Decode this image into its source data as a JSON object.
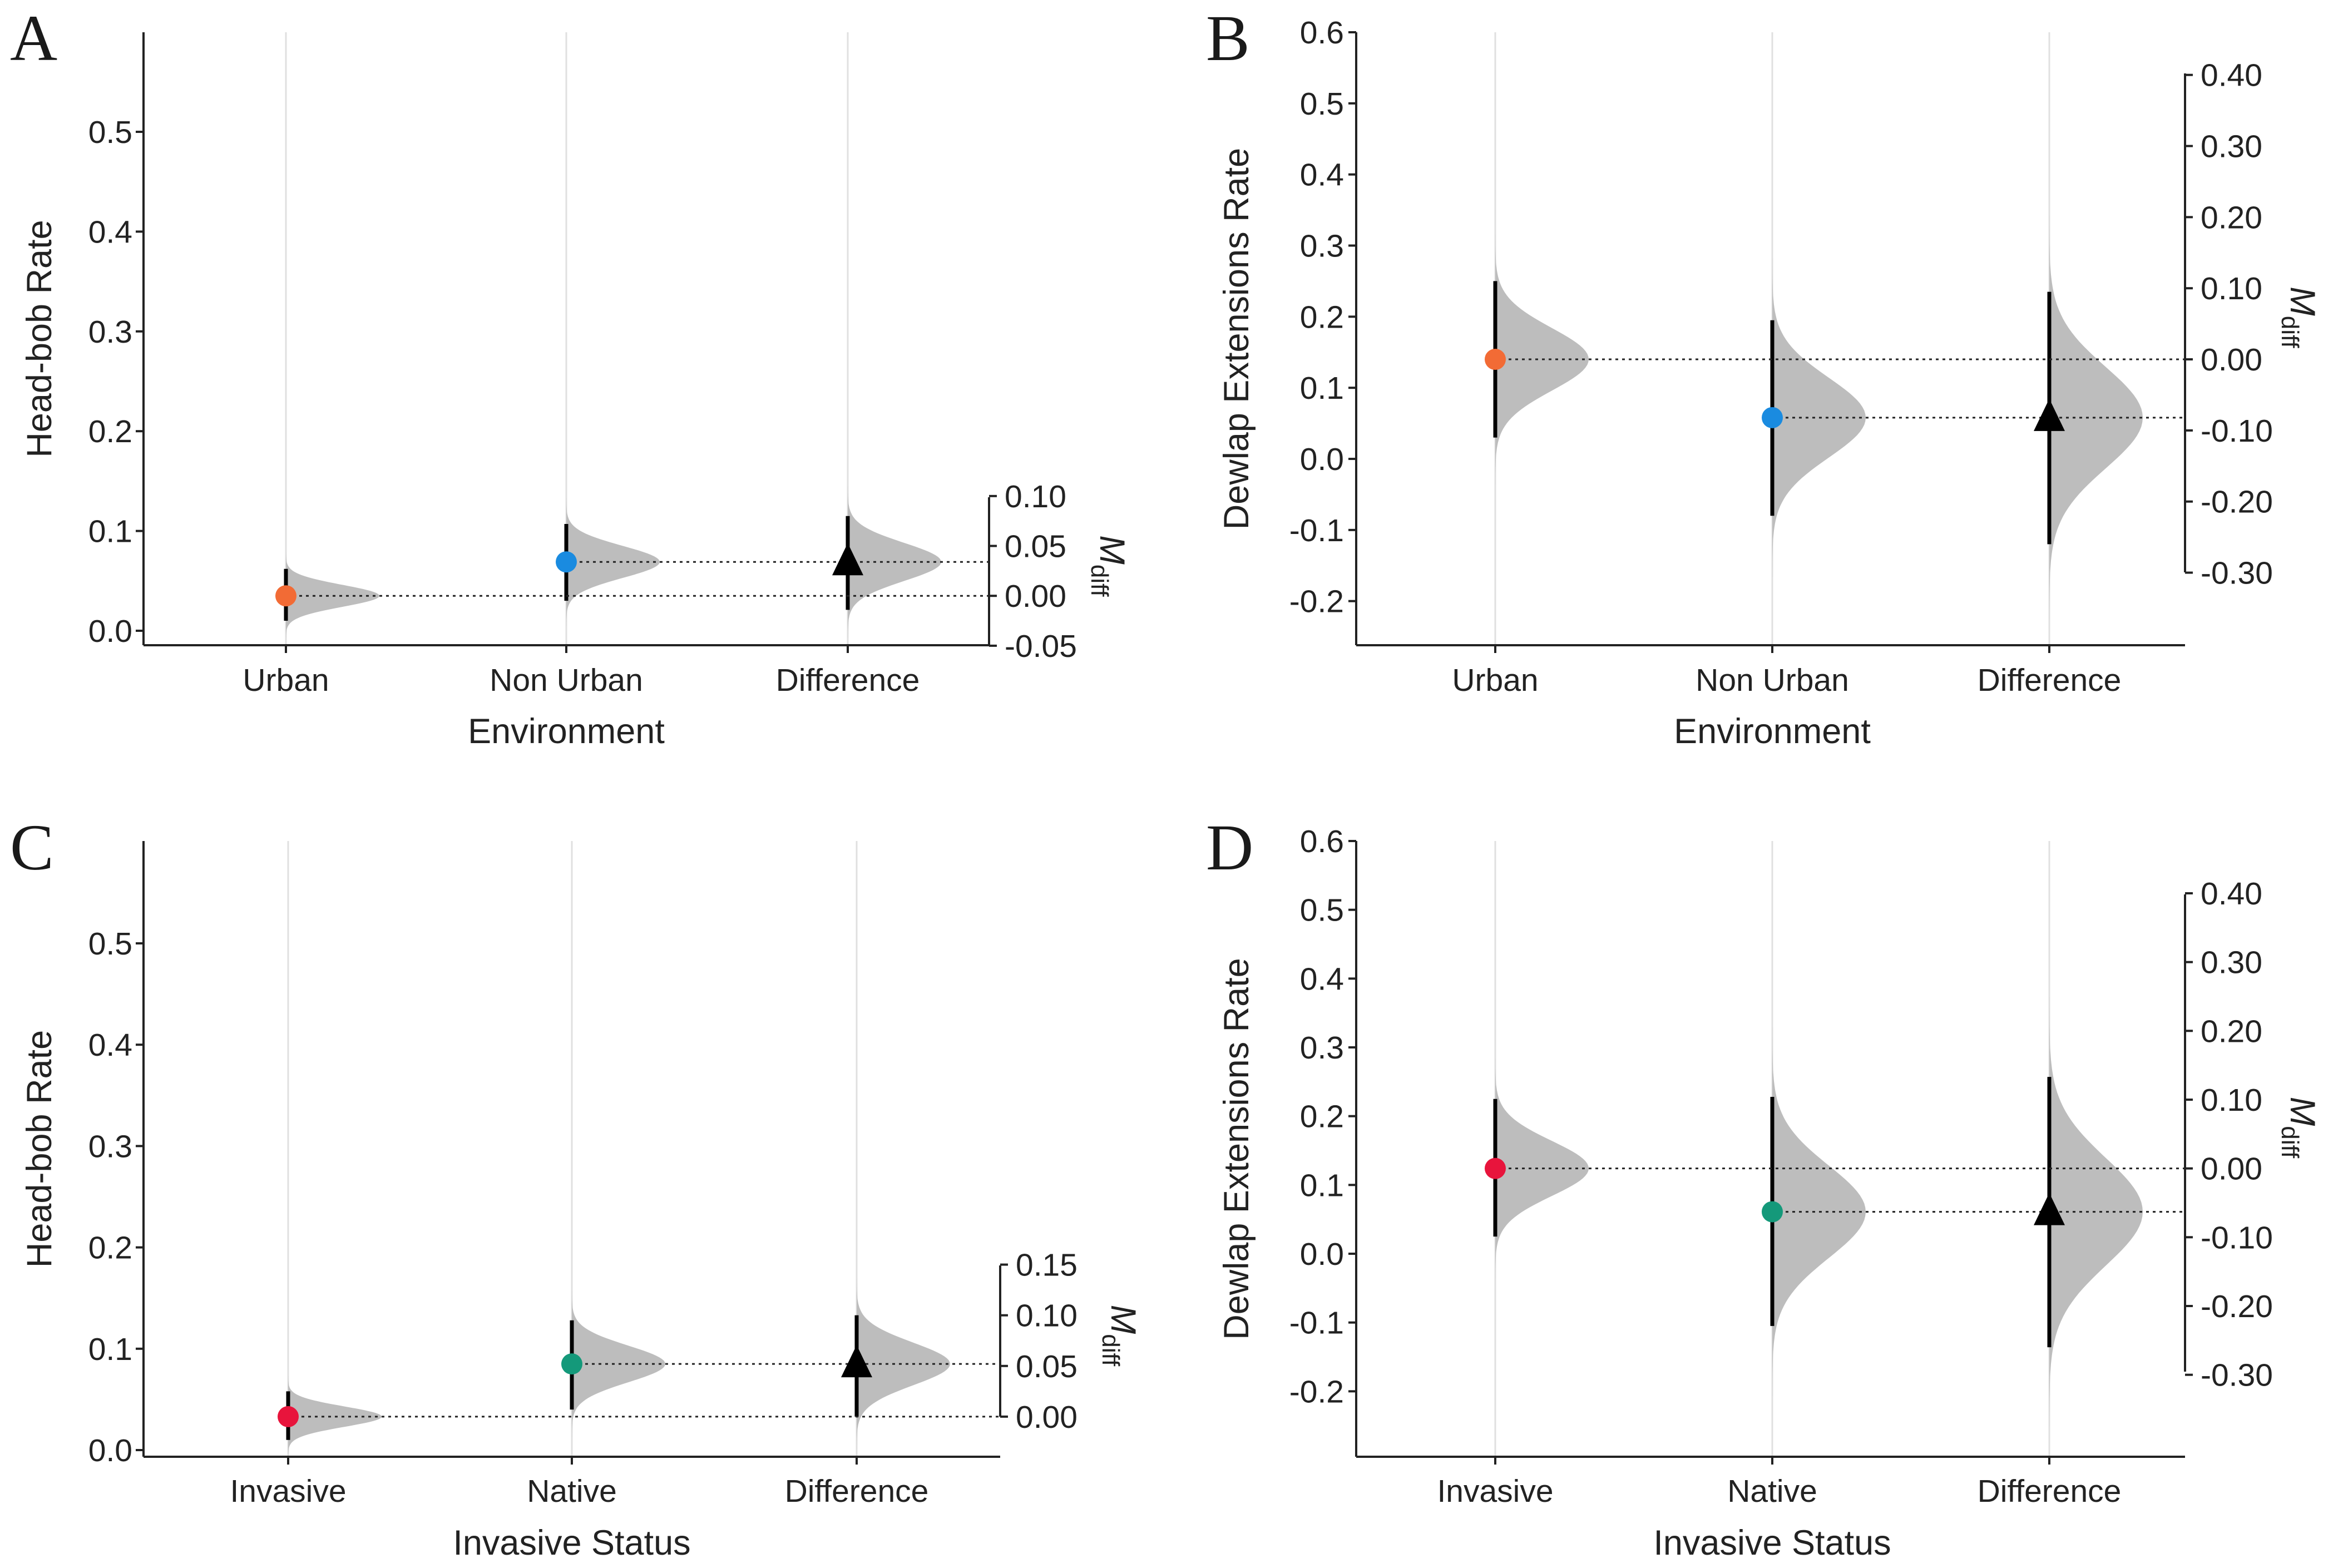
{
  "figure": {
    "colors": {
      "axis": "#222222",
      "distribution": "#bdbdbd",
      "guide": "#e0e0e0",
      "urban": "#f26b35",
      "non_urban": "#1a8be0",
      "invasive": "#e8143c",
      "native": "#14997a",
      "difference": "#000000"
    }
  },
  "chart_data": [
    {
      "panel": "A",
      "type": "scatter",
      "subtype": "estimation plot (Gardner-Altman)",
      "xlabel": "Environment",
      "ylabel": "Head-bob Rate",
      "categories": [
        "Urban",
        "Non Urban",
        "Difference"
      ],
      "ylim": [
        -0.01,
        0.6
      ],
      "yticks": [
        0.0,
        0.1,
        0.2,
        0.3,
        0.4,
        0.5
      ],
      "ytick_labels": [
        "0.0",
        "0.1",
        "0.2",
        "0.3",
        "0.4",
        "0.5"
      ],
      "series": [
        {
          "name": "Urban",
          "mean": 0.035,
          "ci": [
            0.01,
            0.062
          ],
          "dist_sd": 0.011,
          "color_key": "urban",
          "marker": "circle"
        },
        {
          "name": "Non Urban",
          "mean": 0.069,
          "ci": [
            0.03,
            0.107
          ],
          "dist_sd": 0.016,
          "color_key": "non_urban",
          "marker": "circle"
        },
        {
          "name": "Difference",
          "mean": 0.034,
          "ci": [
            -0.014,
            0.08
          ],
          "dist_sd": 0.019,
          "color_key": "difference",
          "marker": "triangle"
        }
      ],
      "secondary_axis": {
        "label": "M",
        "label_sub": "diff",
        "ticks": [
          0.1,
          0.05,
          0.0,
          -0.05
        ],
        "tick_labels": [
          "0.10",
          "0.05",
          "0.00",
          "-0.05"
        ]
      }
    },
    {
      "panel": "B",
      "type": "scatter",
      "subtype": "estimation plot (Gardner-Altman)",
      "xlabel": "Environment",
      "ylabel": "Dewlap Extensions Rate",
      "categories": [
        "Urban",
        "Non Urban",
        "Difference"
      ],
      "ylim": [
        -0.26,
        0.6
      ],
      "yticks": [
        0.6,
        0.5,
        0.4,
        0.3,
        0.2,
        0.1,
        0.0,
        -0.1,
        -0.2
      ],
      "ytick_labels": [
        "0.6",
        "0.5",
        "0.4",
        "0.3",
        "0.2",
        "0.1",
        "0.0",
        "-0.1",
        "-0.2"
      ],
      "series": [
        {
          "name": "Urban",
          "mean": 0.14,
          "ci": [
            0.03,
            0.25
          ],
          "dist_sd": 0.044,
          "color_key": "urban",
          "marker": "circle"
        },
        {
          "name": "Non Urban",
          "mean": 0.058,
          "ci": [
            -0.08,
            0.195
          ],
          "dist_sd": 0.056,
          "color_key": "non_urban",
          "marker": "circle"
        },
        {
          "name": "Difference",
          "mean": -0.082,
          "ci": [
            -0.26,
            0.095
          ],
          "dist_sd": 0.071,
          "color_key": "difference",
          "marker": "triangle"
        }
      ],
      "secondary_axis": {
        "label": "M",
        "label_sub": "diff",
        "ticks": [
          0.4,
          0.3,
          0.2,
          0.1,
          0.0,
          -0.1,
          -0.2,
          -0.3
        ],
        "tick_labels": [
          "0.40",
          "0.30",
          "0.20",
          "0.10",
          "0.00",
          "-0.10",
          "-0.20",
          "-0.30"
        ]
      }
    },
    {
      "panel": "C",
      "type": "scatter",
      "subtype": "estimation plot (Gardner-Altman)",
      "xlabel": "Invasive Status",
      "ylabel": "Head-bob Rate",
      "categories": [
        "Invasive",
        "Native",
        "Difference"
      ],
      "ylim": [
        -0.01,
        0.6
      ],
      "yticks": [
        0.0,
        0.1,
        0.2,
        0.3,
        0.4,
        0.5
      ],
      "ytick_labels": [
        "0.0",
        "0.1",
        "0.2",
        "0.3",
        "0.4",
        "0.5"
      ],
      "series": [
        {
          "name": "Invasive",
          "mean": 0.033,
          "ci": [
            0.01,
            0.058
          ],
          "dist_sd": 0.01,
          "color_key": "invasive",
          "marker": "circle"
        },
        {
          "name": "Native",
          "mean": 0.085,
          "ci": [
            0.04,
            0.128
          ],
          "dist_sd": 0.018,
          "color_key": "native",
          "marker": "circle"
        },
        {
          "name": "Difference",
          "mean": 0.052,
          "ci": [
            0.0,
            0.1
          ],
          "dist_sd": 0.021,
          "color_key": "difference",
          "marker": "triangle"
        }
      ],
      "secondary_axis": {
        "label": "M",
        "label_sub": "diff",
        "ticks": [
          0.15,
          0.1,
          0.05,
          0.0
        ],
        "tick_labels": [
          "0.15",
          "0.10",
          "0.05",
          "0.00"
        ]
      }
    },
    {
      "panel": "D",
      "type": "scatter",
      "subtype": "estimation plot (Gardner-Altman)",
      "xlabel": "Invasive Status",
      "ylabel": "Dewlap Extensions Rate",
      "categories": [
        "Invasive",
        "Native",
        "Difference"
      ],
      "ylim": [
        -0.26,
        0.6
      ],
      "yticks": [
        0.6,
        0.5,
        0.4,
        0.3,
        0.2,
        0.1,
        0.0,
        -0.1,
        -0.2
      ],
      "ytick_labels": [
        "0.6",
        "0.5",
        "0.4",
        "0.3",
        "0.2",
        "0.1",
        "0.0",
        "-0.1",
        "-0.2"
      ],
      "series": [
        {
          "name": "Invasive",
          "mean": 0.124,
          "ci": [
            0.025,
            0.225
          ],
          "dist_sd": 0.04,
          "color_key": "invasive",
          "marker": "circle"
        },
        {
          "name": "Native",
          "mean": 0.061,
          "ci": [
            -0.105,
            0.228
          ],
          "dist_sd": 0.067,
          "color_key": "native",
          "marker": "circle"
        },
        {
          "name": "Difference",
          "mean": -0.063,
          "ci": [
            -0.26,
            0.133
          ],
          "dist_sd": 0.078,
          "color_key": "difference",
          "marker": "triangle"
        }
      ],
      "secondary_axis": {
        "label": "M",
        "label_sub": "diff",
        "ticks": [
          0.4,
          0.3,
          0.2,
          0.1,
          0.0,
          -0.1,
          -0.2,
          -0.3
        ],
        "tick_labels": [
          "0.40",
          "0.30",
          "0.20",
          "0.10",
          "0.00",
          "-0.10",
          "-0.20",
          "-0.30"
        ]
      }
    }
  ]
}
